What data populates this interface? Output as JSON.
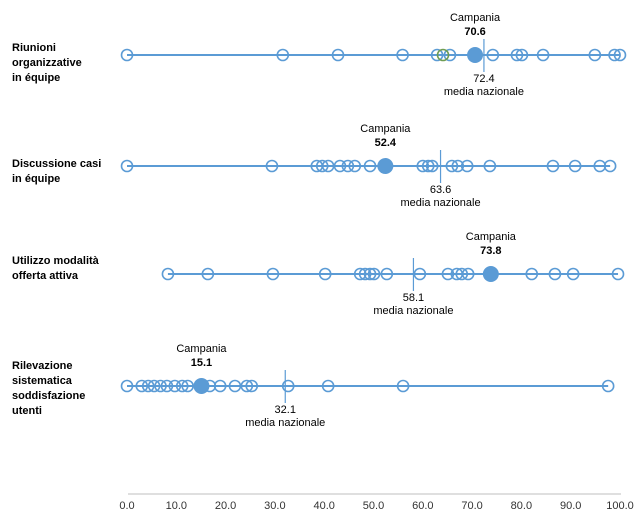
{
  "labels": {
    "campania": "Campania",
    "media": "media nazionale"
  },
  "colors": {
    "dot_blue": "#5B9BD5",
    "dot_green": "#6F9D53",
    "axis_gray": "#BFBFBF",
    "text": "#000000"
  },
  "x_axis": {
    "tick_labels": [
      "0.0",
      "10.0",
      "20.0",
      "30.0",
      "40.0",
      "50.0",
      "60.0",
      "70.0",
      "80.0",
      "90.0",
      "100.0"
    ],
    "min": 0,
    "max": 100
  },
  "chart_data": {
    "type": "scatter",
    "subtype": "dot-strip-plot",
    "title": "",
    "xlabel": "",
    "x_range": [
      0,
      100
    ],
    "rows": [
      {
        "label": "Riunioni organizzative in équipe",
        "label_lines": [
          "Riunioni",
          "organizzative",
          "in équipe"
        ],
        "campania": 70.6,
        "media_nazionale": 72.4,
        "other_points": [
          0,
          31.6,
          42.8,
          55.9,
          62.9,
          65.5,
          74.2,
          79.1,
          80.1,
          84.4,
          94.9,
          98.9,
          100
        ],
        "green_point": 64.1
      },
      {
        "label": "Discussione casi in équipe",
        "label_lines": [
          "Discussione casi",
          "in équipe"
        ],
        "campania": 52.4,
        "media_nazionale": 63.6,
        "other_points": [
          0,
          29.4,
          38.5,
          39.6,
          40.8,
          43.2,
          44.8,
          46.2,
          49.3,
          60.0,
          61.1,
          61.9,
          65.9,
          67.1,
          69.0,
          73.6,
          86.4,
          90.9,
          95.9,
          98.0
        ],
        "green_point": null
      },
      {
        "label": "Utilizzo modalità offerta attiva",
        "label_lines": [
          "Utilizzo modalità",
          "offerta attiva"
        ],
        "campania": 73.8,
        "media_nazionale": 58.1,
        "other_points": [
          8.3,
          16.4,
          29.6,
          40.2,
          47.3,
          48.3,
          49.3,
          50.1,
          52.7,
          59.4,
          65.1,
          66.9,
          67.9,
          69.2,
          82.1,
          86.8,
          90.5,
          99.6
        ],
        "green_point": null
      },
      {
        "label": "Rilevazione sistematica soddisfazione utenti",
        "label_lines": [
          "Rilevazione",
          "sistematica",
          "soddisfazione",
          "utenti"
        ],
        "campania": 15.1,
        "media_nazionale": 32.1,
        "other_points": [
          0,
          3.0,
          4.3,
          5.5,
          6.8,
          8.1,
          9.7,
          11.2,
          12.3,
          16.8,
          18.9,
          21.9,
          24.3,
          25.3,
          32.7,
          40.8,
          56.0,
          97.6
        ],
        "green_point": null
      }
    ]
  }
}
